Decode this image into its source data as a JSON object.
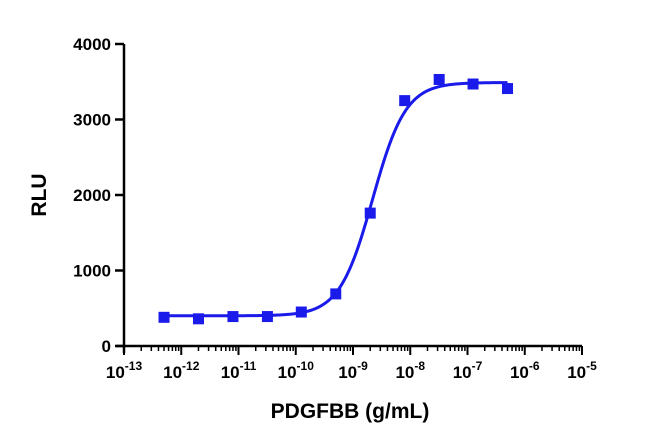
{
  "chart_data": {
    "type": "scatter",
    "xlabel": "PDGFBB (g/mL)",
    "ylabel": "RLU",
    "xscale": "log",
    "xlim": [
      1e-13,
      1e-05
    ],
    "ylim": [
      0,
      4000
    ],
    "y_ticks": [
      0,
      1000,
      2000,
      3000,
      4000
    ],
    "y_tick_labels": [
      "0",
      "1000",
      "2000",
      "3000",
      "4000"
    ],
    "x_tick_exponents": [
      -13,
      -12,
      -11,
      -10,
      -9,
      -8,
      -7,
      -6,
      -5
    ],
    "x_tick_labels": [
      "10-13",
      "10-12",
      "10-11",
      "10-10",
      "10-9",
      "10-8",
      "10-7",
      "10-6",
      "10-5"
    ],
    "grid": false,
    "legend": "none",
    "color": "#1a1aeb",
    "points": {
      "x": [
        5e-13,
        2e-12,
        8e-12,
        3.2e-11,
        1.25e-10,
        5e-10,
        2e-09,
        8e-09,
        3.2e-08,
        1.25e-07,
        5e-07
      ],
      "y": [
        380,
        360,
        390,
        390,
        450,
        690,
        1760,
        3250,
        3530,
        3470,
        3410
      ]
    },
    "fit_curve": {
      "model": "4PL",
      "bottom": 400,
      "top": 3490,
      "ec50": 2.2e-09,
      "hill": 1.5
    }
  }
}
